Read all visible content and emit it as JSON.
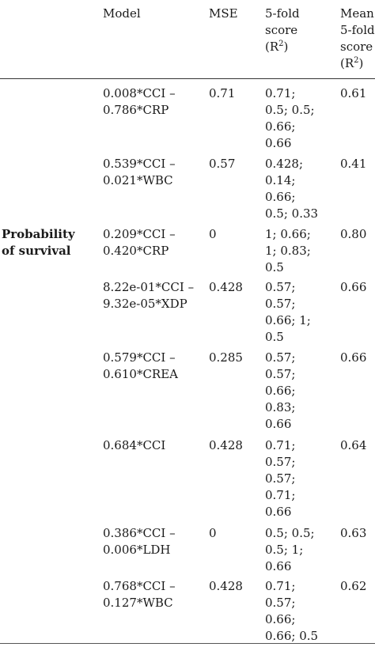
{
  "header": {
    "model": "Model",
    "mse": "MSE",
    "fold_line1": "5-fold",
    "fold_line2": "score",
    "fold_line3_pre": "(R",
    "fold_line3_sup": "2",
    "fold_line3_post": ")",
    "mean_line1": "Mean",
    "mean_line2": "5-fold",
    "mean_line3": "score",
    "mean_line4_pre": "(R",
    "mean_line4_sup": "2",
    "mean_line4_post": ")"
  },
  "group": {
    "label_line1": "Probability",
    "label_line2": "of survival"
  },
  "rows": [
    {
      "model": "0.008*CCI – 0.786*CRP",
      "mse": "0.71",
      "fold": "0.71; 0.5; 0.5; 0.66; 0.66",
      "mean": "0.61"
    },
    {
      "model": "0.539*CCI – 0.021*WBC",
      "mse": "0.57",
      "fold": "0.428; 0.14; 0.66; 0.5; 0.33",
      "mean": "0.41"
    },
    {
      "model": "0.209*CCI – 0.420*CRP",
      "mse": "0",
      "fold": "1; 0.66; 1; 0.83; 0.5",
      "mean": "0.80"
    },
    {
      "model": "8.22e-01*CCI – 9.32e-05*XDP",
      "mse": "0.428",
      "fold": "0.57; 0.57; 0.66; 1; 0.5",
      "mean": "0.66"
    },
    {
      "model": "0.579*CCI – 0.610*CREA",
      "mse": "0.285",
      "fold": "0.57; 0.57; 0.66; 0.83; 0.66",
      "mean": "0.66"
    },
    {
      "model": "0.684*CCI",
      "mse": "0.428",
      "fold": "0.71; 0.57; 0.57; 0.71; 0.66",
      "mean": "0.64"
    },
    {
      "model": "0.386*CCI – 0.006*LDH",
      "mse": "0",
      "fold": "0.5; 0.5; 0.5; 1; 0.66",
      "mean": "0.63"
    },
    {
      "model": "0.768*CCI – 0.127*WBC",
      "mse": "0.428",
      "fold": "0.71; 0.57; 0.66; 0.66; 0.5",
      "mean": "0.62"
    }
  ]
}
